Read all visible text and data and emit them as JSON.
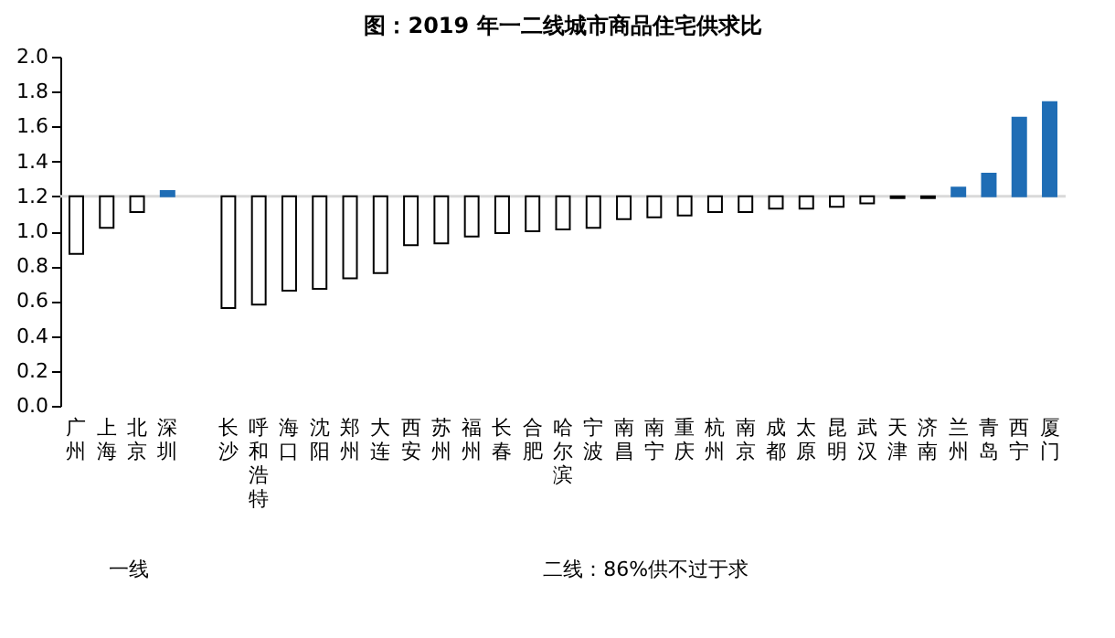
{
  "chart_data": {
    "type": "bar",
    "title": "图：2019 年一二线城市商品住宅供求比",
    "categories": [
      "广州",
      "上海",
      "北京",
      "深圳",
      null,
      "长沙",
      "呼和浩特",
      "海口",
      "沈阳",
      "郑州",
      "大连",
      "西安",
      "苏州",
      "福州",
      "长春",
      "合肥",
      "哈尔滨",
      "宁波",
      "南昌",
      "南宁",
      "重庆",
      "杭州",
      "南京",
      "成都",
      "太原",
      "昆明",
      "武汉",
      "天津",
      "济南",
      "兰州",
      "青岛",
      "西宁",
      "厦门"
    ],
    "base": [
      1.2,
      1.2,
      1.2,
      1.2,
      null,
      1.2,
      1.2,
      1.2,
      1.2,
      1.2,
      1.2,
      1.2,
      1.2,
      1.2,
      1.2,
      1.2,
      1.2,
      1.2,
      1.2,
      1.2,
      1.2,
      1.2,
      1.2,
      1.2,
      1.2,
      1.2,
      1.2,
      1.2,
      1.2,
      1.2,
      1.2,
      1.2,
      1.2
    ],
    "values": [
      -0.33,
      -0.18,
      -0.09,
      0.03,
      null,
      -0.64,
      -0.62,
      -0.54,
      -0.53,
      -0.47,
      -0.44,
      -0.28,
      -0.27,
      -0.23,
      -0.21,
      -0.2,
      -0.19,
      -0.18,
      -0.13,
      -0.12,
      -0.11,
      -0.09,
      -0.09,
      -0.07,
      -0.07,
      -0.06,
      -0.04,
      -0.01,
      -0.01,
      0.05,
      0.13,
      0.45,
      0.54
    ],
    "colors": [
      "#ffffff",
      "#ffffff",
      "#ffffff",
      "#1f6db5",
      null,
      "#ffffff",
      "#ffffff",
      "#ffffff",
      "#ffffff",
      "#ffffff",
      "#ffffff",
      "#ffffff",
      "#ffffff",
      "#ffffff",
      "#ffffff",
      "#ffffff",
      "#ffffff",
      "#ffffff",
      "#ffffff",
      "#ffffff",
      "#ffffff",
      "#ffffff",
      "#ffffff",
      "#ffffff",
      "#ffffff",
      "#ffffff",
      "#ffffff",
      "#ffffff",
      "#ffffff",
      "#1f6db5",
      "#1f6db5",
      "#1f6db5",
      "#1f6db5"
    ],
    "ylim": [
      0,
      2.0
    ],
    "yticks": [
      {
        "value": 0,
        "label": "0.0"
      },
      {
        "value": 0.2,
        "label": "0.2"
      },
      {
        "value": 0.4,
        "label": "0.4"
      },
      {
        "value": 0.6,
        "label": "0.6"
      },
      {
        "value": 0.8,
        "label": "0.8"
      },
      {
        "value": 1.0,
        "label": "1.0"
      },
      {
        "value": 1.2,
        "label": "1.2"
      },
      {
        "value": 1.4,
        "label": "1.4"
      },
      {
        "value": 1.6,
        "label": "1.6"
      },
      {
        "value": 1.8,
        "label": "1.8"
      },
      {
        "value": 2.0,
        "label": "2.0"
      }
    ],
    "ref_lines": [
      {
        "axis": "y",
        "value": 1.2,
        "color": "#d9d9d9"
      }
    ],
    "grid": false,
    "annotations": [
      "一线",
      "二线：86%供不过于求"
    ]
  }
}
